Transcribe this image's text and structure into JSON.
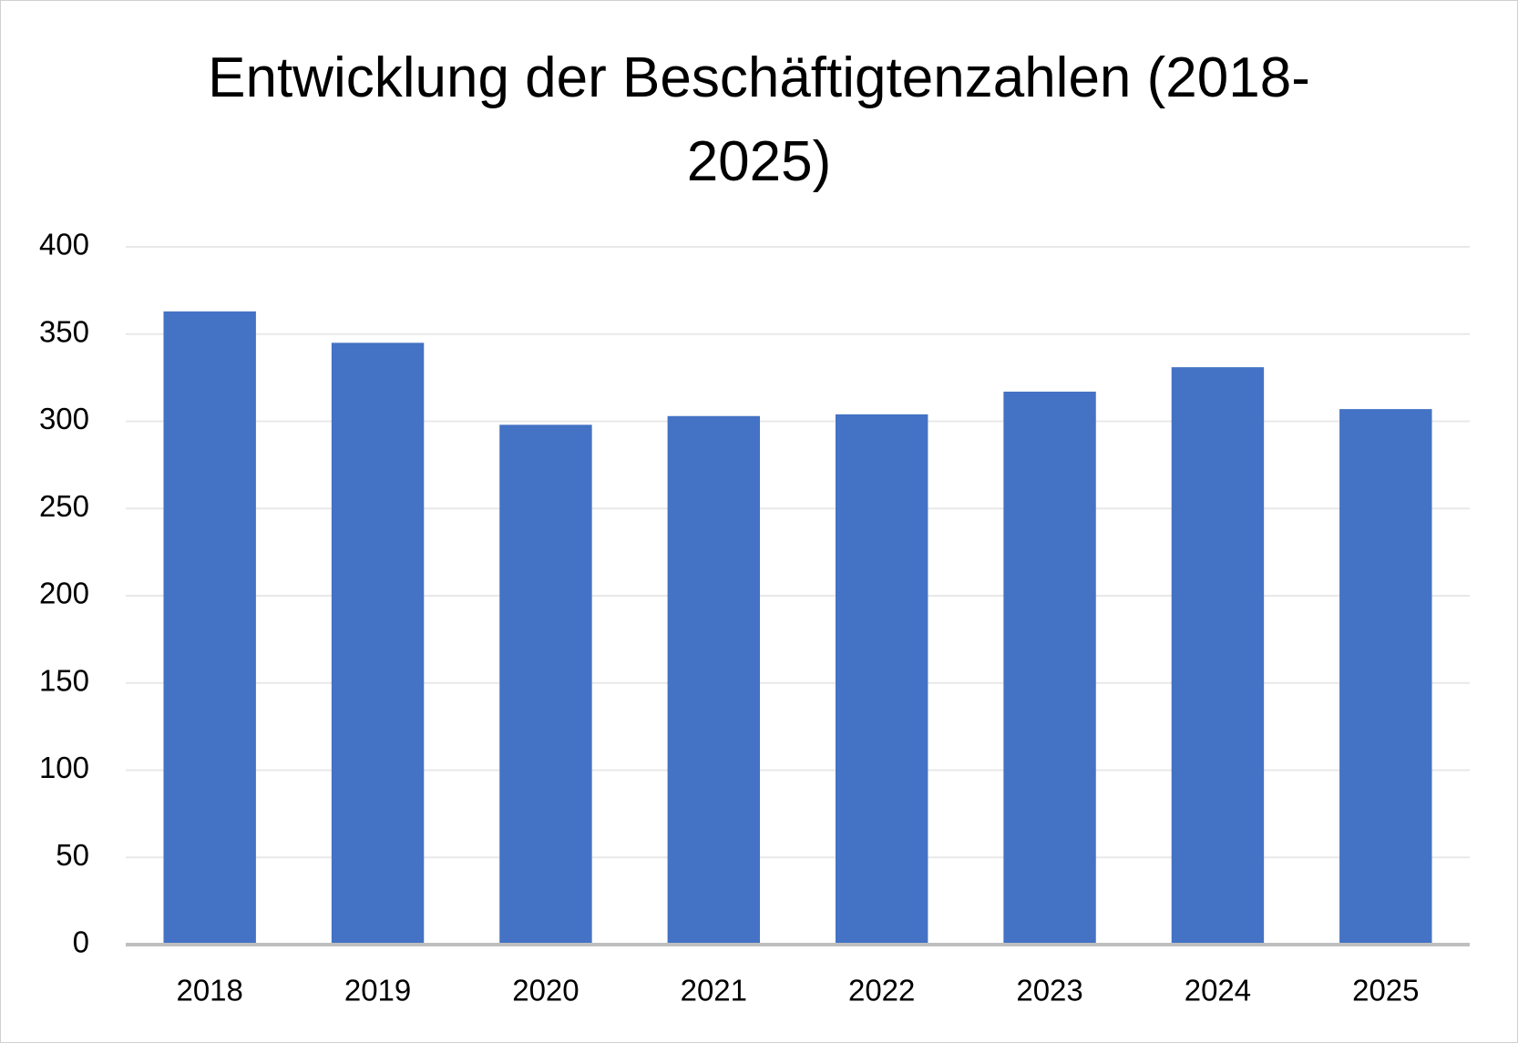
{
  "chart_data": {
    "type": "bar",
    "title": "Entwicklung der Beschäftigtenzahlen (2018-2025)",
    "categories": [
      "2018",
      "2019",
      "2020",
      "2021",
      "2022",
      "2023",
      "2024",
      "2025"
    ],
    "values": [
      363,
      345,
      298,
      303,
      304,
      317,
      331,
      307
    ],
    "color": "#4472c4",
    "ylim": [
      0,
      400
    ],
    "yticks": [
      0,
      50,
      100,
      150,
      200,
      250,
      300,
      350,
      400
    ],
    "grid": true
  }
}
